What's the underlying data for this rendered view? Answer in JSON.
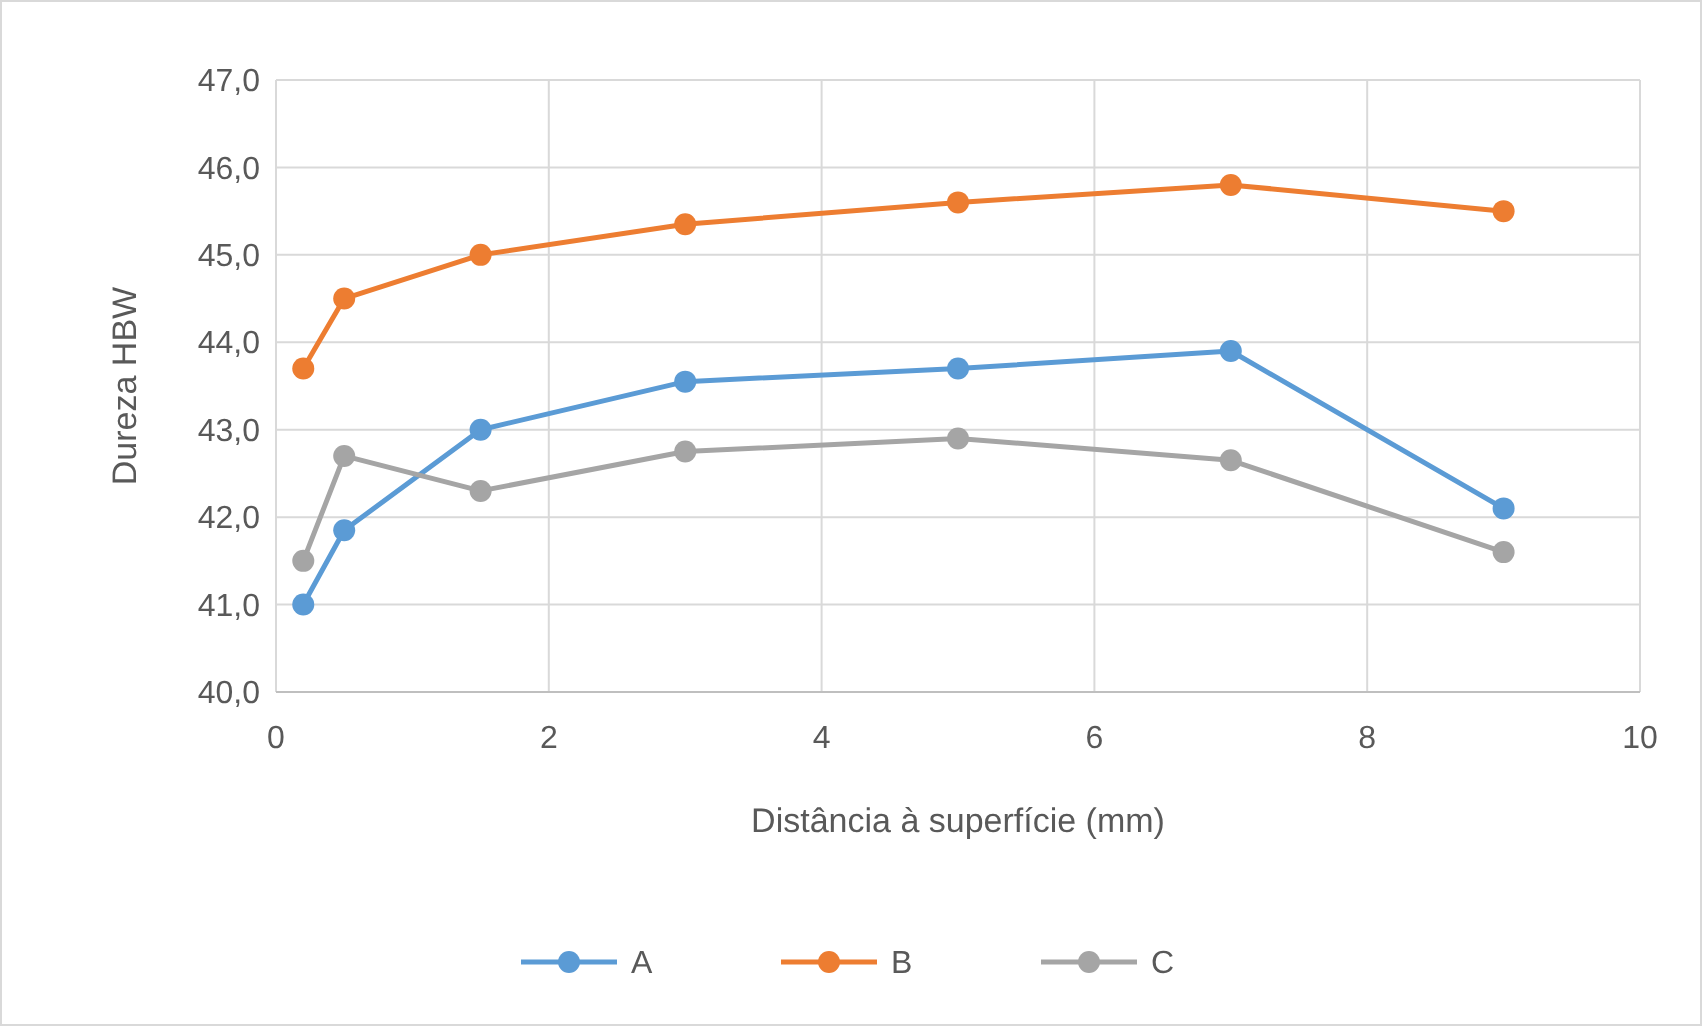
{
  "chart_data": {
    "type": "line",
    "xlabel": "Distância à superfície (mm)",
    "ylabel": "Dureza HBW",
    "x": [
      0.2,
      0.5,
      1.5,
      3,
      5,
      7,
      9
    ],
    "series": [
      {
        "name": "A",
        "color": "#5b9bd5",
        "values": [
          41.0,
          41.85,
          43.0,
          43.55,
          43.7,
          43.9,
          42.1
        ]
      },
      {
        "name": "B",
        "color": "#ed7d31",
        "values": [
          43.7,
          44.5,
          45.0,
          45.35,
          45.6,
          45.8,
          45.5
        ]
      },
      {
        "name": "C",
        "color": "#a5a5a5",
        "values": [
          41.5,
          42.7,
          42.3,
          42.75,
          42.9,
          42.65,
          41.6
        ]
      }
    ],
    "xlim": [
      0,
      10
    ],
    "xticks": [
      0,
      2,
      4,
      6,
      8,
      10
    ],
    "ylim": [
      40,
      47
    ],
    "yticks": [
      {
        "value": 40,
        "label": "40,0"
      },
      {
        "value": 41,
        "label": "41,0"
      },
      {
        "value": 42,
        "label": "42,0"
      },
      {
        "value": 43,
        "label": "43,0"
      },
      {
        "value": 44,
        "label": "44,0"
      },
      {
        "value": 45,
        "label": "45,0"
      },
      {
        "value": 46,
        "label": "46,0"
      },
      {
        "value": 47,
        "label": "47,0"
      }
    ],
    "grid": true,
    "legend": "bottom",
    "marker": "circle",
    "line_style": "solid"
  }
}
